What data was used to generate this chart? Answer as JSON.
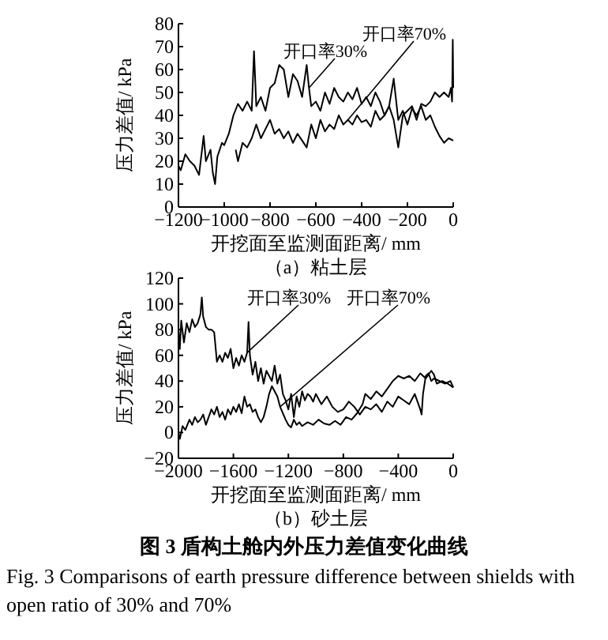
{
  "chart_data": [
    {
      "type": "line",
      "title": "（a）粘土层",
      "xlabel": "开挖面至监测面距离/ mm",
      "ylabel": "压力差值/ kPa",
      "grid": false,
      "line_style": "solid",
      "xlim": [
        -1200,
        0
      ],
      "ylim": [
        0,
        80
      ],
      "xticks": [
        {
          "value": -1200,
          "label": "−1200"
        },
        {
          "value": -1000,
          "label": "−1000"
        },
        {
          "value": -800,
          "label": "−800"
        },
        {
          "value": -600,
          "label": "−600"
        },
        {
          "value": -400,
          "label": "−400"
        },
        {
          "value": -200,
          "label": "−200"
        },
        0
      ],
      "yticks": [
        0,
        10,
        20,
        30,
        40,
        50,
        60,
        70,
        80
      ],
      "series": [
        {
          "name": "开口率30%",
          "color": "#000000",
          "x": [
            -1200,
            -1190,
            -1170,
            -1150,
            -1130,
            -1110,
            -1090,
            -1080,
            -1060,
            -1050,
            -1040,
            -1030,
            -1010,
            -1000,
            -980,
            -960,
            -940,
            -920,
            -900,
            -880,
            -870,
            -860,
            -840,
            -820,
            -800,
            -780,
            -760,
            -740,
            -720,
            -700,
            -680,
            -660,
            -640,
            -630,
            -620,
            -600,
            -580,
            -560,
            -540,
            -520,
            -500,
            -480,
            -460,
            -440,
            -420,
            -400,
            -380,
            -360,
            -340,
            -320,
            -300,
            -280,
            -260,
            -240,
            -220,
            -200,
            -180,
            -160,
            -140,
            -120,
            -100,
            -80,
            -60,
            -40,
            -20,
            0
          ],
          "values": [
            18,
            16,
            23,
            20,
            18,
            14,
            31,
            20,
            25,
            15,
            10,
            22,
            28,
            27,
            32,
            40,
            45,
            42,
            46,
            42,
            68,
            44,
            48,
            42,
            52,
            54,
            62,
            60,
            48,
            58,
            55,
            48,
            62,
            52,
            44,
            46,
            42,
            50,
            45,
            52,
            48,
            46,
            50,
            47,
            52,
            45,
            48,
            44,
            50,
            46,
            40,
            44,
            56,
            38,
            42,
            36,
            43,
            40,
            44,
            38,
            40,
            35,
            31,
            28,
            30,
            29
          ]
        },
        {
          "name": "开口率70%",
          "color": "#000000",
          "x": [
            -950,
            -940,
            -920,
            -900,
            -880,
            -860,
            -840,
            -820,
            -800,
            -780,
            -760,
            -740,
            -720,
            -700,
            -680,
            -660,
            -640,
            -620,
            -600,
            -580,
            -560,
            -540,
            -520,
            -500,
            -480,
            -460,
            -440,
            -420,
            -400,
            -380,
            -360,
            -340,
            -320,
            -300,
            -280,
            -260,
            -240,
            -220,
            -200,
            -180,
            -160,
            -140,
            -120,
            -100,
            -80,
            -60,
            -40,
            -20,
            -10,
            -5,
            -2,
            0
          ],
          "values": [
            25,
            20,
            28,
            26,
            30,
            36,
            30,
            34,
            38,
            32,
            34,
            30,
            33,
            28,
            32,
            29,
            26,
            36,
            30,
            38,
            33,
            36,
            34,
            40,
            36,
            38,
            36,
            40,
            37,
            38,
            35,
            42,
            38,
            40,
            44,
            38,
            26,
            40,
            42,
            44,
            38,
            45,
            44,
            46,
            50,
            48,
            50,
            48,
            52,
            46,
            73,
            52
          ]
        }
      ]
    },
    {
      "type": "line",
      "title": "（b）砂土层",
      "xlabel": "开挖面至监测面距离/ mm",
      "ylabel": "压力差值/ kPa",
      "grid": false,
      "line_style": "solid",
      "xlim": [
        -2000,
        0
      ],
      "ylim": [
        -20,
        120
      ],
      "xticks": [
        {
          "value": -2000,
          "label": "−2000"
        },
        {
          "value": -1600,
          "label": "−1600"
        },
        {
          "value": -1200,
          "label": "−1200"
        },
        {
          "value": -800,
          "label": "−800"
        },
        {
          "value": -400,
          "label": "−400"
        },
        0
      ],
      "yticks": [
        {
          "value": -20,
          "label": "−20"
        },
        0,
        20,
        40,
        60,
        80,
        100,
        120
      ],
      "annotations": [
        "图 3  盾构土舱内外压力差值变化曲线",
        "Fig. 3 Comparisons of earth pressure difference between shields with open ratio of 30% and 70%"
      ],
      "series": [
        {
          "name": "开口率30%",
          "color": "#000000",
          "x": [
            -2000,
            -1990,
            -1980,
            -1960,
            -1940,
            -1920,
            -1900,
            -1880,
            -1860,
            -1840,
            -1830,
            -1820,
            -1800,
            -1780,
            -1760,
            -1740,
            -1720,
            -1700,
            -1680,
            -1660,
            -1640,
            -1620,
            -1600,
            -1580,
            -1560,
            -1540,
            -1520,
            -1500,
            -1490,
            -1480,
            -1460,
            -1440,
            -1420,
            -1400,
            -1380,
            -1360,
            -1340,
            -1320,
            -1300,
            -1280,
            -1260,
            -1240,
            -1220,
            -1200,
            -1180,
            -1160,
            -1140,
            -1120,
            -1100,
            -1080,
            -1060,
            -1040,
            -1020,
            -1000,
            -960,
            -920,
            -880,
            -840,
            -800,
            -760,
            -720,
            -680,
            -640,
            -600,
            -560,
            -520,
            -480,
            -440,
            -400,
            -360,
            -320,
            -280,
            -240,
            -230,
            -220,
            -200,
            -180,
            -160,
            -140,
            -100,
            -60,
            -20,
            0
          ],
          "values": [
            80,
            65,
            87,
            70,
            85,
            78,
            88,
            82,
            85,
            92,
            105,
            90,
            82,
            80,
            80,
            78,
            55,
            60,
            55,
            62,
            58,
            65,
            50,
            58,
            52,
            60,
            55,
            62,
            86,
            60,
            45,
            55,
            40,
            50,
            38,
            48,
            44,
            40,
            52,
            38,
            45,
            30,
            25,
            18,
            30,
            12,
            28,
            20,
            32,
            25,
            30,
            28,
            24,
            30,
            22,
            28,
            20,
            16,
            18,
            24,
            20,
            14,
            20,
            18,
            22,
            16,
            24,
            20,
            28,
            25,
            22,
            30,
            18,
            14,
            30,
            44,
            46,
            40,
            42,
            40,
            38,
            40,
            35
          ]
        },
        {
          "name": "开口率70%",
          "color": "#000000",
          "x": [
            -2000,
            -1990,
            -1970,
            -1950,
            -1920,
            -1900,
            -1880,
            -1860,
            -1840,
            -1820,
            -1800,
            -1780,
            -1760,
            -1740,
            -1720,
            -1700,
            -1680,
            -1660,
            -1640,
            -1620,
            -1600,
            -1580,
            -1560,
            -1540,
            -1520,
            -1500,
            -1480,
            -1460,
            -1440,
            -1420,
            -1400,
            -1380,
            -1360,
            -1340,
            -1320,
            -1300,
            -1280,
            -1260,
            -1240,
            -1220,
            -1200,
            -1180,
            -1160,
            -1140,
            -1120,
            -1100,
            -1060,
            -1020,
            -980,
            -940,
            -900,
            -860,
            -820,
            -780,
            -740,
            -700,
            -660,
            -640,
            -600,
            -560,
            -520,
            -480,
            -440,
            -400,
            -360,
            -320,
            -280,
            -240,
            -200,
            -160,
            -140,
            -120,
            -80,
            -40,
            0
          ],
          "values": [
            0,
            -5,
            5,
            2,
            10,
            6,
            12,
            8,
            10,
            14,
            6,
            12,
            18,
            14,
            20,
            12,
            16,
            10,
            18,
            14,
            20,
            16,
            22,
            15,
            28,
            20,
            22,
            16,
            18,
            12,
            8,
            12,
            20,
            30,
            36,
            32,
            28,
            20,
            15,
            10,
            6,
            4,
            10,
            6,
            8,
            5,
            8,
            6,
            10,
            7,
            6,
            9,
            6,
            12,
            10,
            15,
            22,
            30,
            26,
            32,
            28,
            34,
            40,
            44,
            42,
            44,
            40,
            46,
            42,
            48,
            45,
            38,
            40,
            38,
            35
          ]
        }
      ]
    }
  ]
}
